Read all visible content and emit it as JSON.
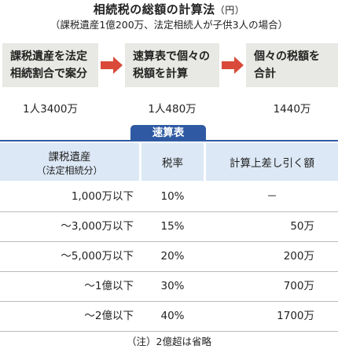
{
  "title": {
    "main": "相続税の総額の計算法",
    "unit": "（円）"
  },
  "subtitle": "（課税遺産1億200万、法定相続人が子供3人の場合）",
  "steps": [
    {
      "line1": "課税遺産を法定",
      "line2": "相続割合で案分"
    },
    {
      "line1": "速算表で個々の",
      "line2": "税額を計算"
    },
    {
      "line1": "個々の税額を",
      "line2": "合計"
    }
  ],
  "results": [
    "1人3400万",
    "1人480万",
    "1440万"
  ],
  "quick_table": {
    "label": "速算表",
    "headers": {
      "col1_line1": "課税遺産",
      "col1_line2": "（法定相続分）",
      "col2": "税率",
      "col3": "計算上差し引く額"
    },
    "rows": [
      {
        "estate": "1,000万以下",
        "rate": "10%",
        "deduction": "－"
      },
      {
        "estate": "～3,000万以下",
        "rate": "15%",
        "deduction": "50万"
      },
      {
        "estate": "～5,000万以下",
        "rate": "20%",
        "deduction": "200万"
      },
      {
        "estate": "～1億以下",
        "rate": "30%",
        "deduction": "700万"
      },
      {
        "estate": "～2億以下",
        "rate": "40%",
        "deduction": "1700万"
      }
    ]
  },
  "note": "（注）2億超は省略",
  "colors": {
    "accent": "#2f5aa3",
    "arrow": "#d94a3a",
    "step_bg": "#e8e8e4",
    "header_bg": "#dce8f5"
  }
}
